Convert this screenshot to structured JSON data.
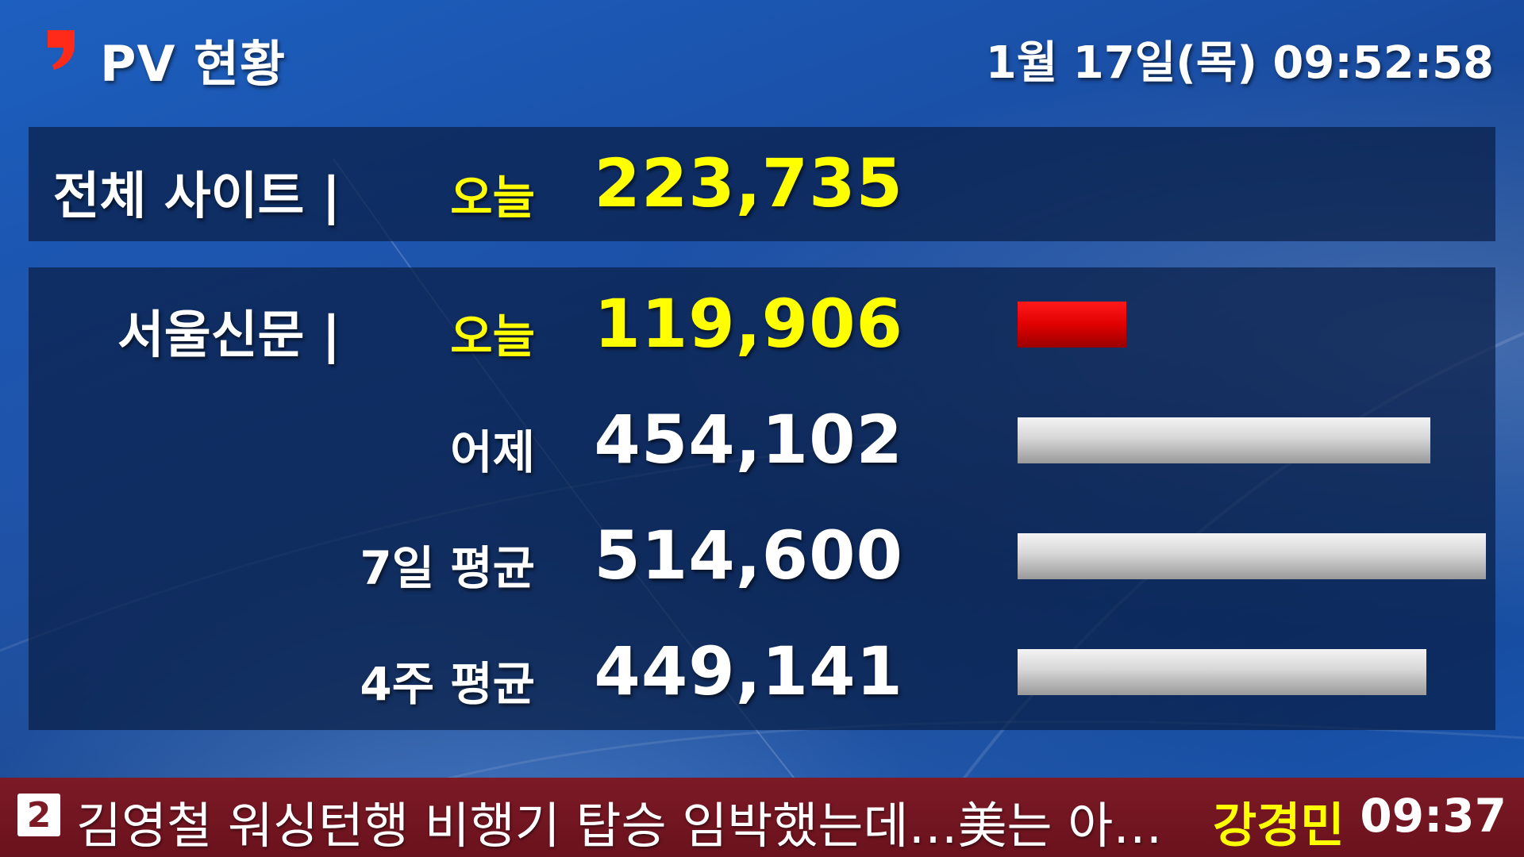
{
  "header": {
    "logo_icon": "red-comma-logo-icon",
    "title": "PV 현황",
    "datetime": "1월 17일(목) 09:52:58"
  },
  "total": {
    "label": "전체 사이트 |",
    "period": "오늘",
    "value": "223,735"
  },
  "site": {
    "label": "서울신문 |",
    "rows": [
      {
        "period": "오늘",
        "value": "119,906",
        "bar_fraction": 0.233,
        "bar_color": "red"
      },
      {
        "period": "어제",
        "value": "454,102",
        "bar_fraction": 0.882,
        "bar_color": "gray"
      },
      {
        "period": "7일 평균",
        "value": "514,600",
        "bar_fraction": 1.0,
        "bar_color": "gray"
      },
      {
        "period": "4주 평균",
        "value": "449,141",
        "bar_fraction": 0.873,
        "bar_color": "gray"
      }
    ]
  },
  "ticker": {
    "rank": "2",
    "headline": "김영철 워싱턴행 비행기 탑승 임박했는데…美는 아…",
    "reporter": "강경민",
    "time": "09:37"
  },
  "colors": {
    "accent_yellow": "#ffff00",
    "bar_red": "#e00000",
    "bar_gray": "#cfcfcf",
    "ticker_bg": "#7c1a26",
    "panel_bg": "#0a1e46"
  }
}
